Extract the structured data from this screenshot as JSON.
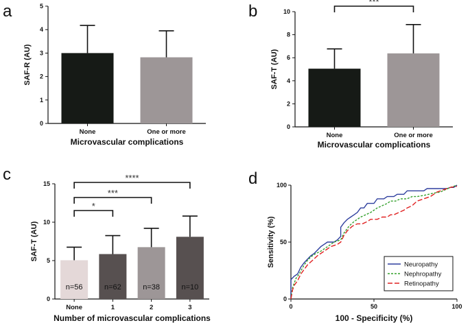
{
  "panel_letters": {
    "a": "a",
    "b": "b",
    "c": "c",
    "d": "d"
  },
  "chart_data": [
    {
      "panel": "a",
      "type": "bar",
      "title": "",
      "xlabel": "Microvascular complications",
      "ylabel": "SAF-R (AU)",
      "categories": [
        "None",
        "One or more"
      ],
      "values": [
        3.0,
        2.82
      ],
      "errors": [
        1.18,
        1.13
      ],
      "colors": [
        "#161a16",
        "#9d9697"
      ],
      "ylim": [
        0,
        5
      ],
      "yticks": [
        0,
        1,
        2,
        3,
        4,
        5
      ],
      "significance": []
    },
    {
      "panel": "b",
      "type": "bar",
      "title": "",
      "xlabel": "Microvascular complications",
      "ylabel": "SAF-T (AU)",
      "categories": [
        "None",
        "One or more"
      ],
      "values": [
        5.05,
        6.38
      ],
      "errors": [
        1.72,
        2.5
      ],
      "colors": [
        "#161a16",
        "#9d9697"
      ],
      "ylim": [
        0,
        10
      ],
      "yticks": [
        0,
        2,
        4,
        6,
        8,
        10
      ],
      "significance": [
        {
          "from": 0,
          "to": 1,
          "label": "***"
        }
      ]
    },
    {
      "panel": "c",
      "type": "bar",
      "title": "",
      "xlabel": "Number of microvascular complications",
      "ylabel": "SAF-T (AU)",
      "categories": [
        "None",
        "1",
        "2",
        "3"
      ],
      "values": [
        5.05,
        5.85,
        6.75,
        8.1
      ],
      "errors": [
        1.7,
        2.4,
        2.45,
        2.7
      ],
      "colors": [
        "#e4d8d8",
        "#575050",
        "#9d9697",
        "#575050"
      ],
      "n_labels": [
        "n=56",
        "n=62",
        "n=38",
        "n=10"
      ],
      "ylim": [
        0,
        15
      ],
      "yticks": [
        0,
        5,
        10,
        15
      ],
      "significance": [
        {
          "from": 0,
          "to": 1,
          "label": "*"
        },
        {
          "from": 0,
          "to": 2,
          "label": "***"
        },
        {
          "from": 0,
          "to": 3,
          "label": "****"
        }
      ]
    },
    {
      "panel": "d",
      "type": "line",
      "title": "",
      "xlabel": "100 - Specificity (%)",
      "ylabel": "Sensitivity (%)",
      "xlim": [
        0,
        100
      ],
      "ylim": [
        0,
        100
      ],
      "xticks": [
        0,
        50,
        100
      ],
      "yticks": [
        0,
        50,
        100
      ],
      "legend_position": "bottom-right",
      "series": [
        {
          "name": "Neuropathy",
          "color": "#2e3f9e",
          "dash": "",
          "x": [
            0,
            0,
            2,
            4,
            6,
            8,
            10,
            12,
            14,
            16,
            18,
            20,
            22,
            24,
            26,
            28,
            30,
            30,
            32,
            34,
            36,
            38,
            40,
            42,
            44,
            46,
            48,
            50,
            52,
            54,
            56,
            58,
            60,
            62,
            64,
            66,
            68,
            70,
            72,
            74,
            76,
            78,
            80,
            82,
            84,
            86,
            88,
            90,
            92,
            94,
            96,
            98,
            100
          ],
          "y": [
            0,
            17,
            20,
            22,
            28,
            32,
            35,
            38,
            40,
            43,
            46,
            48,
            50,
            50,
            50,
            52,
            55,
            63,
            67,
            70,
            72,
            74,
            76,
            80,
            80,
            84,
            84,
            84,
            88,
            88,
            88,
            90,
            90,
            90,
            92,
            92,
            92,
            95,
            95,
            95,
            95,
            95,
            95,
            97,
            97,
            97,
            97,
            97,
            97,
            97,
            98,
            98,
            100
          ]
        },
        {
          "name": "Nephropathy",
          "color": "#33a02c",
          "dash": "3,2",
          "x": [
            0,
            1,
            3,
            5,
            8,
            10,
            12,
            15,
            18,
            20,
            23,
            26,
            30,
            32,
            35,
            38,
            40,
            42,
            45,
            48,
            50,
            52,
            55,
            58,
            60,
            63,
            66,
            70,
            73,
            76,
            80,
            83,
            86,
            90,
            93,
            96,
            100
          ],
          "y": [
            0,
            10,
            18,
            22,
            30,
            34,
            37,
            40,
            42,
            44,
            47,
            50,
            52,
            58,
            64,
            68,
            70,
            72,
            74,
            76,
            78,
            80,
            82,
            84,
            86,
            86,
            88,
            88,
            90,
            90,
            91,
            92,
            93,
            94,
            96,
            98,
            100
          ]
        },
        {
          "name": "Retinopathy",
          "color": "#e02020",
          "dash": "7,3",
          "x": [
            0,
            1,
            2,
            4,
            6,
            8,
            10,
            13,
            16,
            20,
            24,
            28,
            30,
            32,
            34,
            37,
            40,
            43,
            46,
            48,
            50,
            52,
            55,
            58,
            60,
            62,
            65,
            68,
            70,
            73,
            76,
            80,
            84,
            88,
            92,
            96,
            100
          ],
          "y": [
            0,
            8,
            12,
            16,
            22,
            26,
            30,
            34,
            38,
            42,
            46,
            48,
            50,
            56,
            60,
            64,
            66,
            66,
            68,
            70,
            70,
            70,
            72,
            72,
            74,
            74,
            76,
            78,
            80,
            82,
            86,
            88,
            90,
            94,
            96,
            98,
            99
          ]
        }
      ]
    }
  ]
}
